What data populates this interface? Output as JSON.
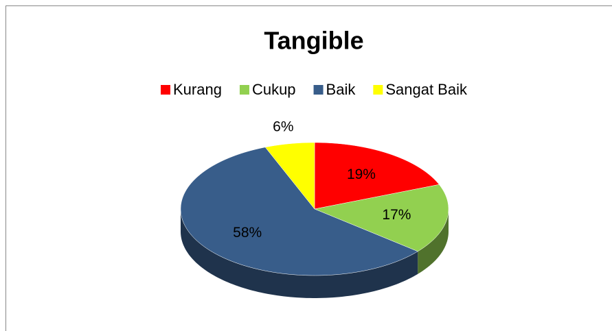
{
  "chart_data": {
    "type": "pie",
    "title": "Tangible",
    "categories": [
      "Kurang",
      "Cukup",
      "Baik",
      "Sangat Baik"
    ],
    "values": [
      19,
      17,
      58,
      6
    ],
    "value_labels": [
      "19%",
      "17%",
      "58%",
      "6%"
    ],
    "colors": [
      "#ff0000",
      "#92d050",
      "#385d8a",
      "#ffff00"
    ],
    "legend": "top"
  }
}
